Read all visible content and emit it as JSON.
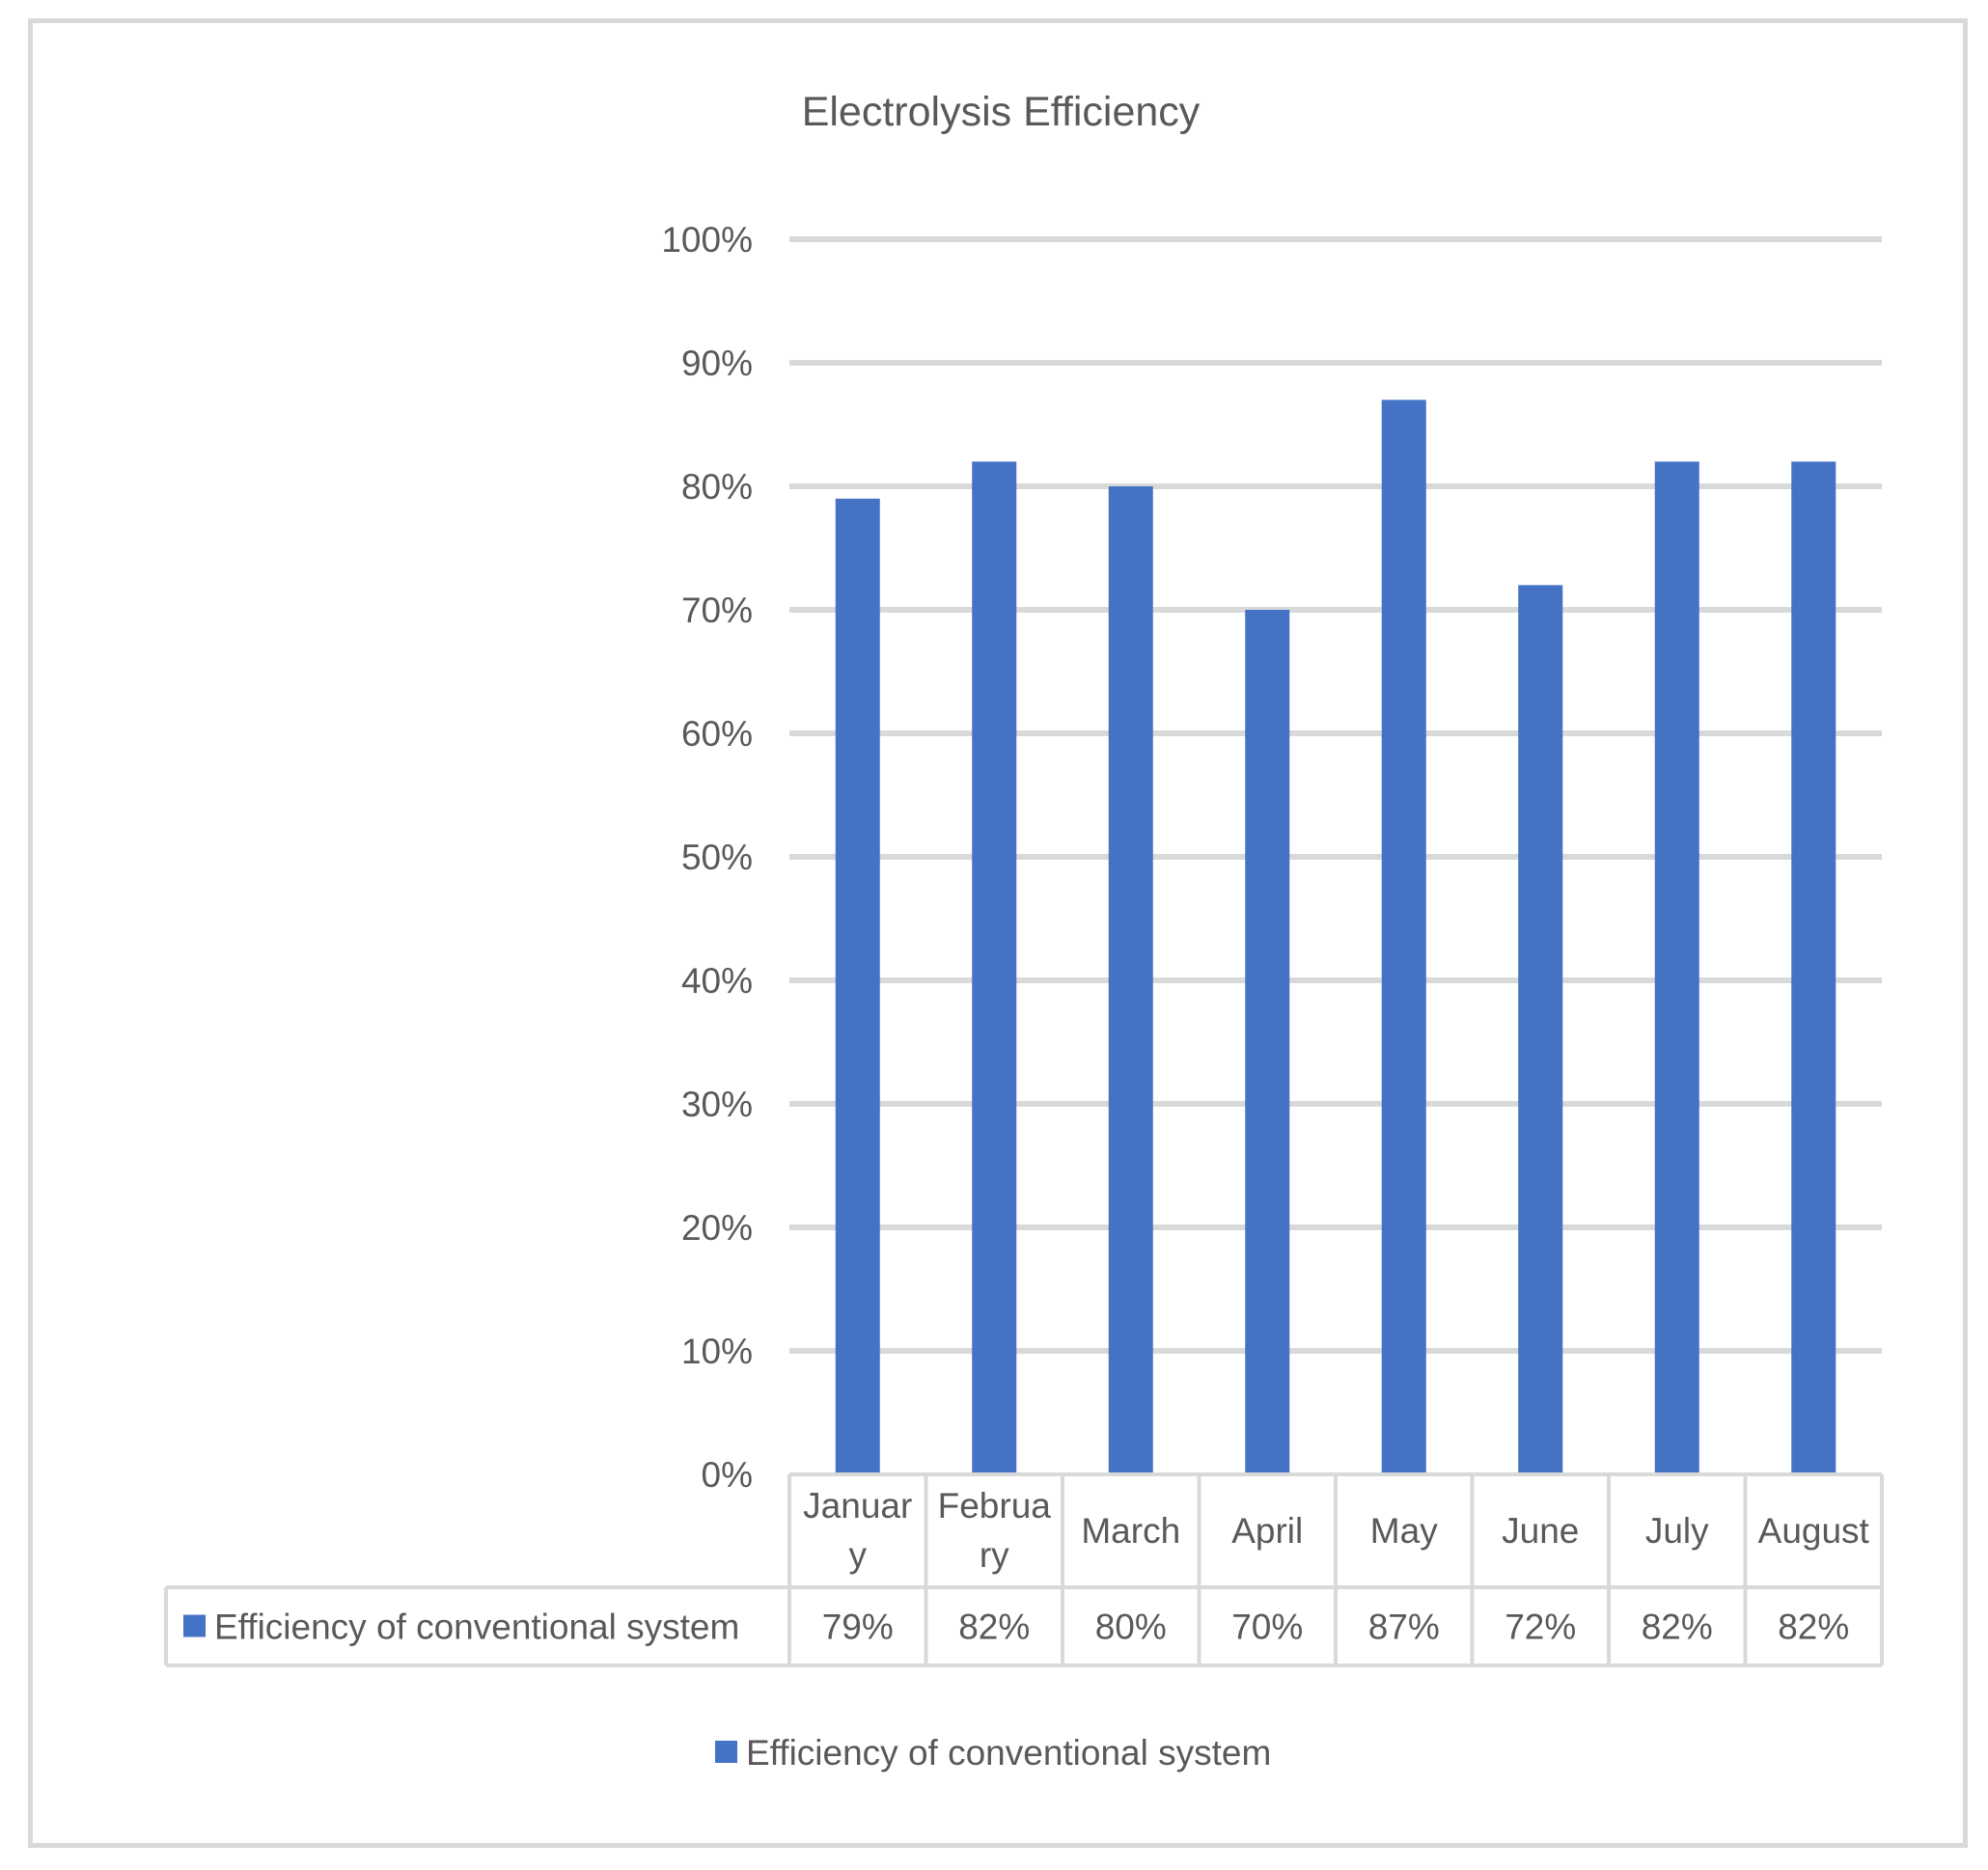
{
  "chart_data": {
    "type": "bar",
    "title": "Electrolysis Efficiency",
    "categories": [
      [
        "Januar",
        "y"
      ],
      [
        "Februa",
        "ry"
      ],
      [
        "March"
      ],
      [
        "April"
      ],
      [
        "May"
      ],
      [
        "June"
      ],
      [
        "July"
      ],
      [
        "August"
      ]
    ],
    "series": [
      {
        "name": "Efficiency of  conventional system",
        "values": [
          79,
          82,
          80,
          70,
          87,
          72,
          82,
          82
        ],
        "labels": [
          "79%",
          "82%",
          "80%",
          "70%",
          "87%",
          "72%",
          "82%",
          "82%"
        ],
        "color": "#4472c4"
      }
    ],
    "yticks": [
      "0%",
      "10%",
      "20%",
      "30%",
      "40%",
      "50%",
      "60%",
      "70%",
      "80%",
      "90%",
      "100%"
    ],
    "ylim": [
      0,
      100
    ],
    "grid": true,
    "data_table": true,
    "legend_position": "bottom"
  }
}
